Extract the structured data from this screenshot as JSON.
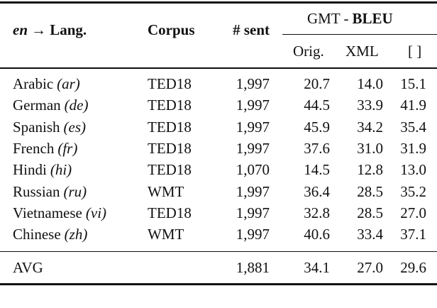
{
  "table": {
    "header": {
      "lang": {
        "src": "en",
        "rest": "→ Lang."
      },
      "corpus": "Corpus",
      "sent": "# sent",
      "gmt": {
        "prefix": "GMT -",
        "metric": "BLEU"
      },
      "sub": [
        "Orig.",
        "XML",
        "[ ]"
      ]
    },
    "rows": [
      {
        "lang": "Arabic",
        "code": "(ar)",
        "corpus": "TED18",
        "sent": "1,997",
        "scores": [
          "20.7",
          "14.0",
          "15.1"
        ]
      },
      {
        "lang": "German",
        "code": "(de)",
        "corpus": "TED18",
        "sent": "1,997",
        "scores": [
          "44.5",
          "33.9",
          "41.9"
        ]
      },
      {
        "lang": "Spanish",
        "code": "(es)",
        "corpus": "TED18",
        "sent": "1,997",
        "scores": [
          "45.9",
          "34.2",
          "35.4"
        ]
      },
      {
        "lang": "French",
        "code": "(fr)",
        "corpus": "TED18",
        "sent": "1,997",
        "scores": [
          "37.6",
          "31.0",
          "31.9"
        ]
      },
      {
        "lang": "Hindi",
        "code": "(hi)",
        "corpus": "TED18",
        "sent": "1,070",
        "scores": [
          "14.5",
          "12.8",
          "13.0"
        ]
      },
      {
        "lang": "Russian",
        "code": "(ru)",
        "corpus": "WMT",
        "sent": "1,997",
        "scores": [
          "36.4",
          "28.5",
          "35.2"
        ]
      },
      {
        "lang": "Vietnamese",
        "code": "(vi)",
        "corpus": "TED18",
        "sent": "1,997",
        "scores": [
          "32.8",
          "28.5",
          "27.0"
        ]
      },
      {
        "lang": "Chinese",
        "code": "(zh)",
        "corpus": "WMT",
        "sent": "1,997",
        "scores": [
          "40.6",
          "33.4",
          "37.1"
        ]
      }
    ],
    "avg": {
      "label": "AVG",
      "sent": "1,881",
      "scores": [
        "34.1",
        "27.0",
        "29.6"
      ]
    }
  }
}
